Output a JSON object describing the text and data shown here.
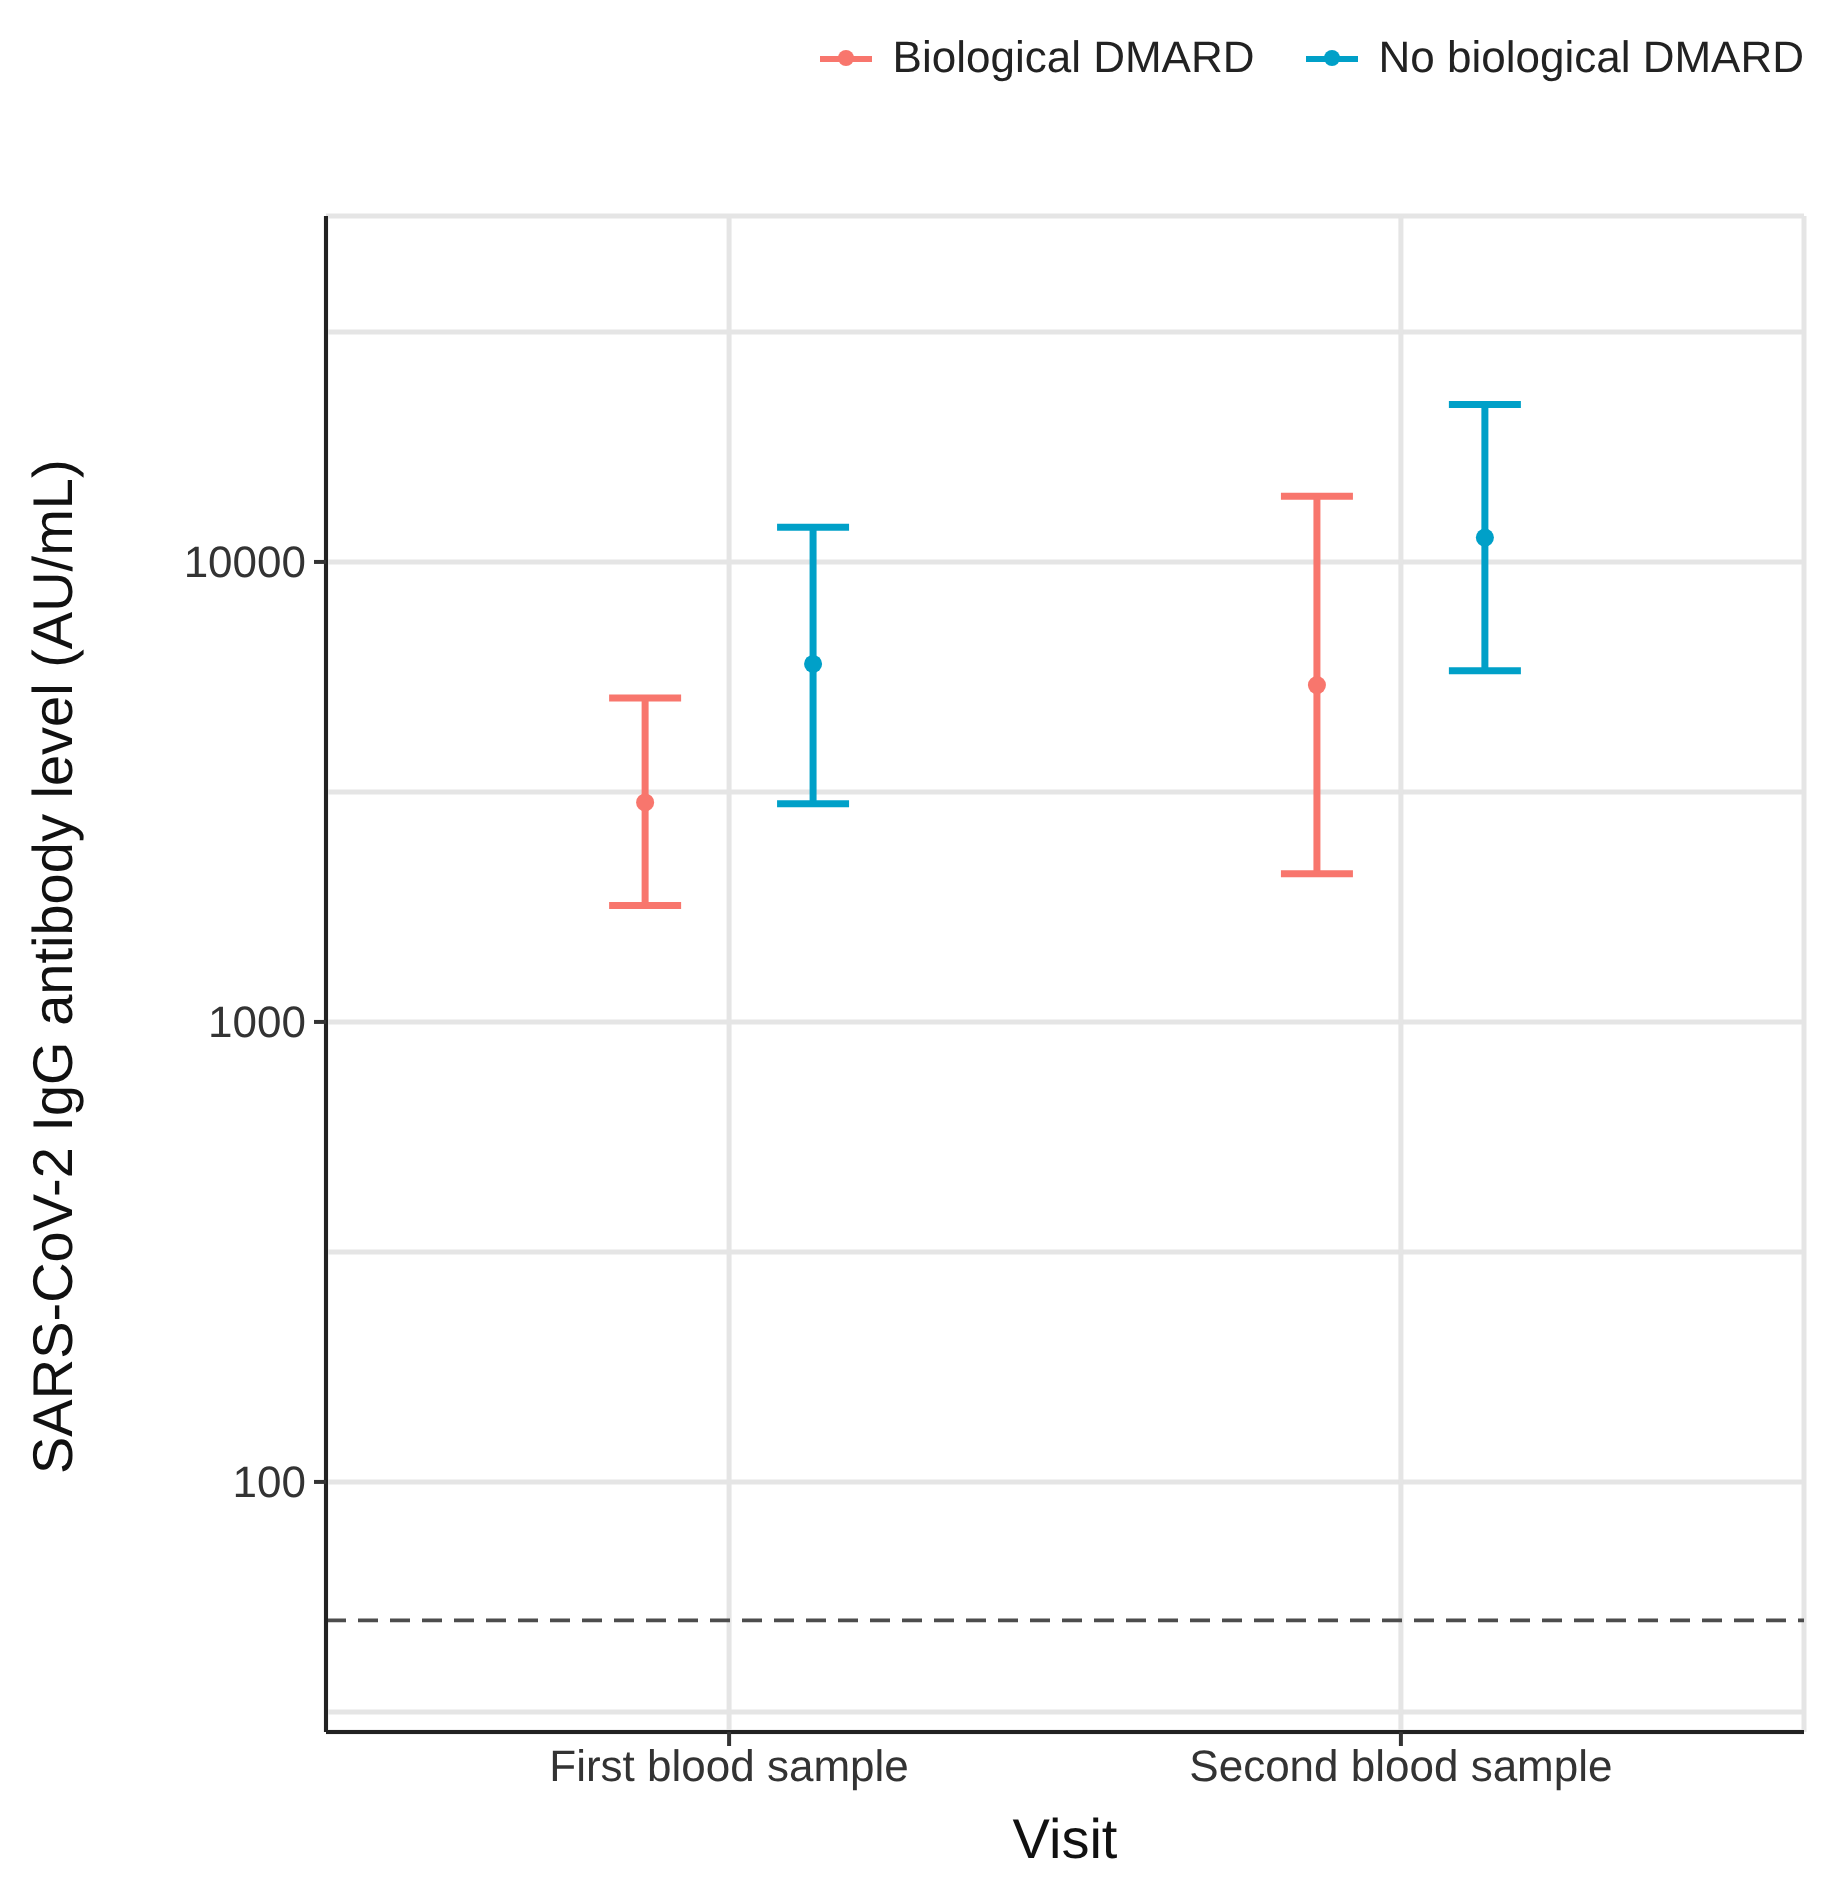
{
  "chart_data": {
    "type": "scatter",
    "xlabel": "Visit",
    "ylabel": "SARS-CoV-2 IgG antibody level (AU/mL)",
    "categories": [
      "First blood sample",
      "Second blood sample"
    ],
    "series": [
      {
        "name": "Biological DMARD",
        "color": "#f8766d",
        "values": [
          3000,
          5400
        ],
        "errors": [
          [
            1790,
            5060
          ],
          [
            2100,
            13900
          ]
        ]
      },
      {
        "name": "No biological DMARD",
        "color": "#00a0c8",
        "values": [
          6000,
          11300
        ],
        "errors": [
          [
            2980,
            11900
          ],
          [
            5800,
            22000
          ]
        ]
      }
    ],
    "log": "y",
    "ylim": [
      28.6,
      56500
    ],
    "yticks": [
      {
        "value": 31.62,
        "label": null
      },
      100,
      {
        "value": 316.2,
        "label": null
      },
      1000,
      {
        "value": 3162,
        "label": null
      },
      10000,
      {
        "value": 31623,
        "label": null
      }
    ],
    "ref_lines": [
      {
        "axis": "y",
        "value": 50,
        "color": "#4d4d4d",
        "line_style": "dashed"
      }
    ],
    "grid": true,
    "legend": "top right",
    "marker": "circle"
  }
}
